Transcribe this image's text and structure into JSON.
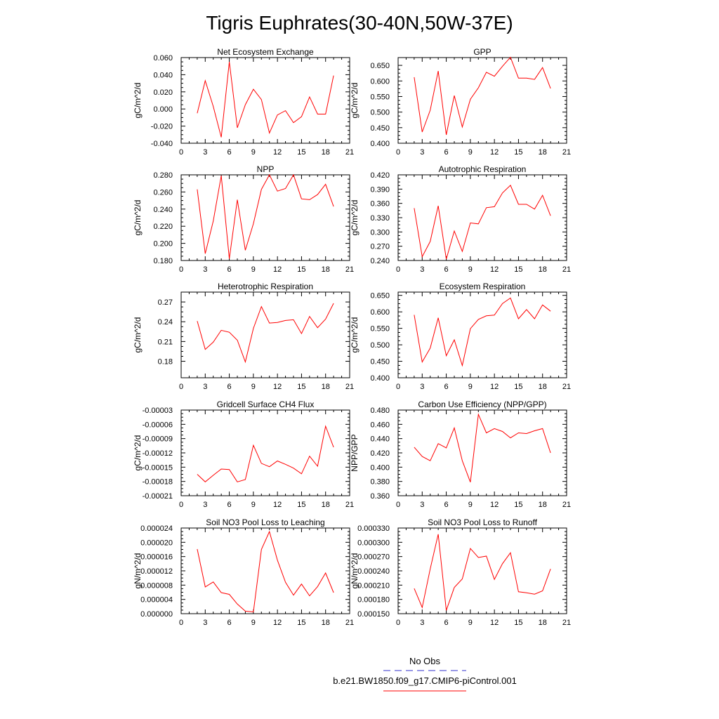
{
  "figure_title": "Tigris Euphrates(30-40N,50W-37E)",
  "chart_data": [
    {
      "type": "line",
      "title": "Net Ecosystem Exchange",
      "ylabel": "gC/m^2/d",
      "xlim": [
        0,
        21
      ],
      "xticks": [
        "0",
        "3",
        "6",
        "9",
        "12",
        "15",
        "18",
        "21"
      ],
      "ylim": [
        -0.04,
        0.06
      ],
      "yticks": [
        "-0.040",
        "-0.020",
        "0.000",
        "0.020",
        "0.040",
        "0.060"
      ],
      "x": [
        2,
        3,
        4,
        5,
        6,
        7,
        8,
        9,
        10,
        11,
        12,
        13,
        14,
        15,
        16,
        17,
        18,
        19
      ],
      "series": [
        {
          "name": "b.e21.BW1850.f09_g17.CMIP6-piControl.001",
          "color": "#ff0000",
          "values": [
            -0.005,
            0.033,
            0.003,
            -0.033,
            0.055,
            -0.022,
            0.005,
            0.023,
            0.011,
            -0.028,
            -0.007,
            -0.002,
            -0.016,
            -0.009,
            0.014,
            -0.006,
            -0.006,
            0.039
          ]
        }
      ]
    },
    {
      "type": "line",
      "title": "GPP",
      "ylabel": "gC/m^2/d",
      "xlim": [
        0,
        21
      ],
      "xticks": [
        "0",
        "3",
        "6",
        "9",
        "12",
        "15",
        "18",
        "21"
      ],
      "ylim": [
        0.4,
        0.675
      ],
      "yticks": [
        "0.400",
        "0.450",
        "0.500",
        "0.550",
        "0.600",
        "0.650"
      ],
      "x": [
        2,
        3,
        4,
        5,
        6,
        7,
        8,
        9,
        10,
        11,
        12,
        13,
        14,
        15,
        16,
        17,
        18,
        19
      ],
      "series": [
        {
          "name": "b.e21.BW1850.f09_g17.CMIP6-piControl.001",
          "color": "#ff0000",
          "values": [
            0.612,
            0.436,
            0.506,
            0.632,
            0.427,
            0.553,
            0.452,
            0.541,
            0.578,
            0.628,
            0.615,
            0.647,
            0.676,
            0.609,
            0.609,
            0.605,
            0.643,
            0.576
          ]
        }
      ]
    },
    {
      "type": "line",
      "title": "NPP",
      "ylabel": "gC/m^2/d",
      "xlim": [
        0,
        21
      ],
      "xticks": [
        "0",
        "3",
        "6",
        "9",
        "12",
        "15",
        "18",
        "21"
      ],
      "ylim": [
        0.18,
        0.28
      ],
      "yticks": [
        "0.180",
        "0.200",
        "0.220",
        "0.240",
        "0.260",
        "0.280"
      ],
      "x": [
        2,
        3,
        4,
        5,
        6,
        7,
        8,
        9,
        10,
        11,
        12,
        13,
        14,
        15,
        16,
        17,
        18,
        19
      ],
      "series": [
        {
          "name": "b.e21.BW1850.f09_g17.CMIP6-piControl.001",
          "color": "#ff0000",
          "values": [
            0.263,
            0.188,
            0.226,
            0.279,
            0.182,
            0.251,
            0.192,
            0.223,
            0.263,
            0.28,
            0.261,
            0.264,
            0.28,
            0.252,
            0.251,
            0.257,
            0.269,
            0.243
          ]
        }
      ]
    },
    {
      "type": "line",
      "title": "Autotrophic Respiration",
      "ylabel": "gC/m^2/d",
      "xlim": [
        0,
        21
      ],
      "xticks": [
        "0",
        "3",
        "6",
        "9",
        "12",
        "15",
        "18",
        "21"
      ],
      "ylim": [
        0.24,
        0.42
      ],
      "yticks": [
        "0.240",
        "0.270",
        "0.300",
        "0.330",
        "0.360",
        "0.390",
        "0.420"
      ],
      "x": [
        2,
        3,
        4,
        5,
        6,
        7,
        8,
        9,
        10,
        11,
        12,
        13,
        14,
        15,
        16,
        17,
        18,
        19
      ],
      "series": [
        {
          "name": "b.e21.BW1850.f09_g17.CMIP6-piControl.001",
          "color": "#ff0000",
          "values": [
            0.35,
            0.248,
            0.28,
            0.355,
            0.243,
            0.302,
            0.259,
            0.319,
            0.317,
            0.351,
            0.353,
            0.382,
            0.398,
            0.358,
            0.358,
            0.348,
            0.377,
            0.334
          ]
        }
      ]
    },
    {
      "type": "line",
      "title": "Heterotrophic Respiration",
      "ylabel": "gC/m^2/d",
      "xlim": [
        0,
        21
      ],
      "xticks": [
        "0",
        "3",
        "6",
        "9",
        "12",
        "15",
        "18",
        "21"
      ],
      "ylim": [
        0.155,
        0.285
      ],
      "yticks": [
        "0.18",
        "0.21",
        "0.24",
        "0.27"
      ],
      "ytick_values": [
        0.18,
        0.21,
        0.24,
        0.27
      ],
      "x": [
        2,
        3,
        4,
        5,
        6,
        7,
        8,
        9,
        10,
        11,
        12,
        13,
        14,
        15,
        16,
        17,
        18,
        19
      ],
      "series": [
        {
          "name": "b.e21.BW1850.f09_g17.CMIP6-piControl.001",
          "color": "#ff0000",
          "values": [
            0.241,
            0.198,
            0.209,
            0.227,
            0.224,
            0.212,
            0.179,
            0.23,
            0.263,
            0.238,
            0.239,
            0.242,
            0.243,
            0.222,
            0.248,
            0.231,
            0.244,
            0.268
          ]
        }
      ]
    },
    {
      "type": "line",
      "title": "Ecosystem Respiration",
      "ylabel": "gC/m^2/d",
      "xlim": [
        0,
        21
      ],
      "xticks": [
        "0",
        "3",
        "6",
        "9",
        "12",
        "15",
        "18",
        "21"
      ],
      "ylim": [
        0.4,
        0.66
      ],
      "yticks": [
        "0.400",
        "0.450",
        "0.500",
        "0.550",
        "0.600",
        "0.650"
      ],
      "x": [
        2,
        3,
        4,
        5,
        6,
        7,
        8,
        9,
        10,
        11,
        12,
        13,
        14,
        15,
        16,
        17,
        18,
        19
      ],
      "series": [
        {
          "name": "b.e21.BW1850.f09_g17.CMIP6-piControl.001",
          "color": "#ff0000",
          "values": [
            0.591,
            0.448,
            0.49,
            0.582,
            0.467,
            0.515,
            0.437,
            0.549,
            0.577,
            0.588,
            0.59,
            0.625,
            0.642,
            0.579,
            0.607,
            0.579,
            0.621,
            0.602
          ]
        }
      ]
    },
    {
      "type": "line",
      "title": "Gridcell Surface CH4 Flux",
      "ylabel": "gC/m^2/d",
      "xlim": [
        0,
        21
      ],
      "xticks": [
        "0",
        "3",
        "6",
        "9",
        "12",
        "15",
        "18",
        "21"
      ],
      "ylim": [
        -0.00021,
        -3e-05
      ],
      "yticks": [
        "-0.00021",
        "-0.00018",
        "-0.00015",
        "-0.00012",
        "-0.00009",
        "-0.00006",
        "-0.00003"
      ],
      "x": [
        2,
        3,
        4,
        5,
        6,
        7,
        8,
        9,
        10,
        11,
        12,
        13,
        14,
        15,
        16,
        17,
        18,
        19
      ],
      "series": [
        {
          "name": "b.e21.BW1850.f09_g17.CMIP6-piControl.001",
          "color": "#ff0000",
          "values": [
            -0.000165,
            -0.000181,
            -0.000167,
            -0.000154,
            -0.000155,
            -0.000181,
            -0.000176,
            -0.000104,
            -0.000142,
            -0.000149,
            -0.000137,
            -0.000144,
            -0.000152,
            -0.000164,
            -0.000127,
            -0.000148,
            -6.4e-05,
            -0.000108
          ]
        }
      ]
    },
    {
      "type": "line",
      "title": "Carbon Use Efficiency (NPP/GPP)",
      "ylabel": "NPP/GPP",
      "xlim": [
        0,
        21
      ],
      "xticks": [
        "0",
        "3",
        "6",
        "9",
        "12",
        "15",
        "18",
        "21"
      ],
      "ylim": [
        0.36,
        0.48
      ],
      "yticks": [
        "0.360",
        "0.380",
        "0.400",
        "0.420",
        "0.440",
        "0.460",
        "0.480"
      ],
      "x": [
        2,
        3,
        4,
        5,
        6,
        7,
        8,
        9,
        10,
        11,
        12,
        13,
        14,
        15,
        16,
        17,
        18,
        19
      ],
      "series": [
        {
          "name": "b.e21.BW1850.f09_g17.CMIP6-piControl.001",
          "color": "#ff0000",
          "values": [
            0.428,
            0.415,
            0.409,
            0.433,
            0.427,
            0.455,
            0.409,
            0.379,
            0.474,
            0.448,
            0.454,
            0.45,
            0.441,
            0.448,
            0.447,
            0.451,
            0.454,
            0.42
          ]
        }
      ]
    },
    {
      "type": "line",
      "title": "Soil NO3 Pool Loss to Leaching",
      "ylabel": "gN/m^2/d",
      "xlim": [
        0,
        21
      ],
      "xticks": [
        "0",
        "3",
        "6",
        "9",
        "12",
        "15",
        "18",
        "21"
      ],
      "ylim": [
        0.0,
        2.4e-05
      ],
      "yticks": [
        "0.000000",
        "0.000004",
        "0.000008",
        "0.000012",
        "0.000016",
        "0.000020",
        "0.000024"
      ],
      "x": [
        2,
        3,
        4,
        5,
        6,
        7,
        8,
        9,
        10,
        11,
        12,
        13,
        14,
        15,
        16,
        17,
        18,
        19
      ],
      "series": [
        {
          "name": "b.e21.BW1850.f09_g17.CMIP6-piControl.001",
          "color": "#ff0000",
          "values": [
            1.81e-05,
            7.5e-06,
            8.9e-06,
            5.9e-06,
            5.4e-06,
            2.7e-06,
            7e-07,
            5e-07,
            1.8e-05,
            2.3e-05,
            1.5e-05,
            8.8e-06,
            5.2e-06,
            8.3e-06,
            5e-06,
            7.6e-06,
            1.14e-05,
            5.9e-06
          ]
        }
      ]
    },
    {
      "type": "line",
      "title": "Soil NO3 Pool Loss to Runoff",
      "ylabel": "gN/m^2/d",
      "xlim": [
        0,
        21
      ],
      "xticks": [
        "0",
        "3",
        "6",
        "9",
        "12",
        "15",
        "18",
        "21"
      ],
      "ylim": [
        0.00015,
        0.00033
      ],
      "yticks": [
        "0.000150",
        "0.000180",
        "0.000210",
        "0.000240",
        "0.000270",
        "0.000300",
        "0.000330"
      ],
      "x": [
        2,
        3,
        4,
        5,
        6,
        7,
        8,
        9,
        10,
        11,
        12,
        13,
        14,
        15,
        16,
        17,
        18,
        19
      ],
      "series": [
        {
          "name": "b.e21.BW1850.f09_g17.CMIP6-piControl.001",
          "color": "#ff0000",
          "values": [
            0.000203,
            0.000163,
            0.000244,
            0.000317,
            0.000157,
            0.000205,
            0.000223,
            0.000287,
            0.000268,
            0.000271,
            0.000222,
            0.000255,
            0.000278,
            0.000196,
            0.000194,
            0.000191,
            0.000198,
            0.000244
          ]
        }
      ]
    }
  ],
  "legend": [
    {
      "label": "No Obs",
      "color": "#3333cc",
      "style": "dashed"
    },
    {
      "label": "b.e21.BW1850.f09_g17.CMIP6-piControl.001",
      "color": "#ff0000",
      "style": "solid"
    }
  ]
}
